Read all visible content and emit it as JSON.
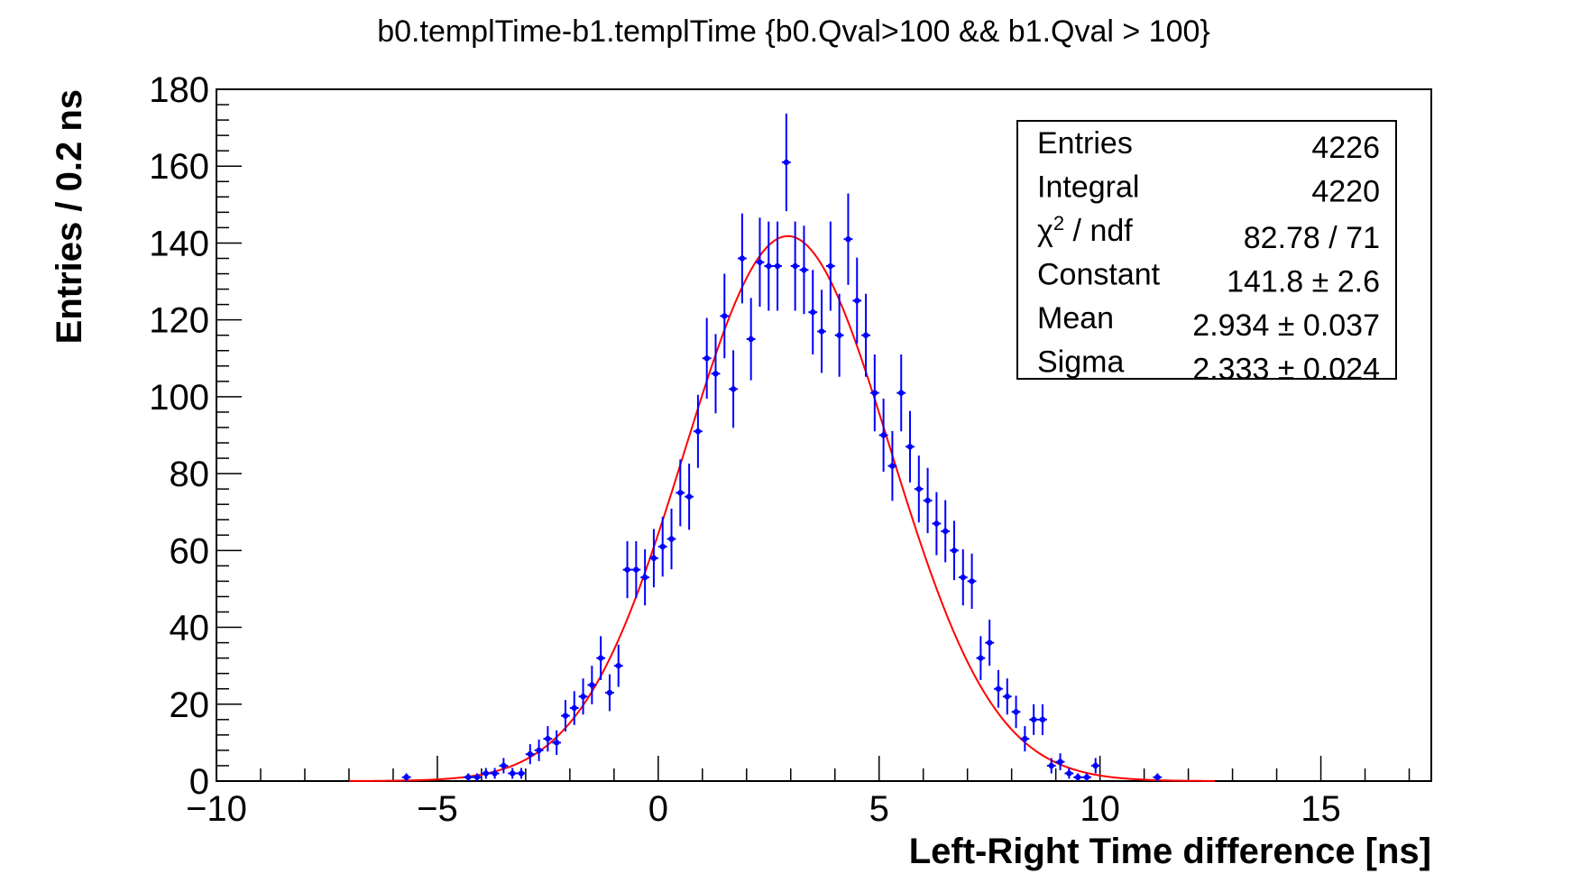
{
  "chart_data": {
    "type": "scatter",
    "title": "b0.templTime-b1.templTime {b0.Qval>100 && b1.Qval > 100}",
    "xlabel": "Left-Right Time difference [ns]",
    "ylabel": "Entries / 0.2 ns",
    "xlim": [
      -10,
      17.5
    ],
    "ylim": [
      0,
      180
    ],
    "x_ticks": [
      -10,
      -5,
      0,
      5,
      10,
      15
    ],
    "x_tick_labels": [
      "−10",
      "−5",
      "0",
      "5",
      "10",
      "15"
    ],
    "y_ticks": [
      0,
      20,
      40,
      60,
      80,
      100,
      120,
      140,
      160,
      180
    ],
    "y_tick_labels": [
      "0",
      "20",
      "40",
      "60",
      "80",
      "100",
      "120",
      "140",
      "160",
      "180"
    ],
    "grid": false,
    "legend_position": "top-right",
    "series": [
      {
        "color": "#0000ff",
        "style": "points-with-error-bars",
        "x": [
          -5.7,
          -4.3,
          -4.1,
          -3.9,
          -3.7,
          -3.5,
          -3.3,
          -3.1,
          -2.9,
          -2.7,
          -2.5,
          -2.3,
          -2.1,
          -1.9,
          -1.7,
          -1.5,
          -1.3,
          -1.1,
          -0.9,
          -0.7,
          -0.5,
          -0.3,
          -0.1,
          0.1,
          0.3,
          0.5,
          0.7,
          0.9,
          1.1,
          1.3,
          1.5,
          1.7,
          1.9,
          2.1,
          2.3,
          2.5,
          2.7,
          2.9,
          3.1,
          3.3,
          3.5,
          3.7,
          3.9,
          4.1,
          4.3,
          4.5,
          4.7,
          4.9,
          5.1,
          5.3,
          5.5,
          5.7,
          5.9,
          6.1,
          6.3,
          6.5,
          6.7,
          6.9,
          7.1,
          7.3,
          7.5,
          7.7,
          7.9,
          8.1,
          8.3,
          8.5,
          8.7,
          8.9,
          9.1,
          9.3,
          9.5,
          9.7,
          9.9,
          11.3
        ],
        "y": [
          1,
          1,
          1,
          2,
          2,
          4,
          2,
          2,
          7,
          8,
          11,
          10,
          17,
          19,
          22,
          25,
          32,
          23,
          30,
          55,
          55,
          53,
          58,
          61,
          63,
          75,
          74,
          91,
          110,
          106,
          121,
          102,
          136,
          115,
          135,
          134,
          134,
          161,
          134,
          133,
          122,
          117,
          134,
          116,
          141,
          125,
          116,
          101,
          90,
          82,
          101,
          87,
          76,
          73,
          67,
          65,
          60,
          53,
          52,
          32,
          36,
          24,
          22,
          18,
          11,
          16,
          16,
          4,
          5,
          2,
          1,
          1,
          4,
          1
        ],
        "err": [
          1,
          1,
          1,
          1.4,
          1.4,
          2,
          1.4,
          1.4,
          2.6,
          2.8,
          3.3,
          3.2,
          4.1,
          4.4,
          4.7,
          5,
          5.7,
          4.8,
          5.5,
          7.4,
          7.4,
          7.3,
          7.6,
          7.8,
          7.9,
          8.7,
          8.6,
          9.5,
          10.5,
          10.3,
          11,
          10.1,
          11.7,
          10.7,
          11.6,
          11.6,
          11.6,
          12.7,
          11.6,
          11.5,
          11,
          10.8,
          11.6,
          10.8,
          11.9,
          11.2,
          10.8,
          10,
          9.5,
          9.1,
          10,
          9.3,
          8.7,
          8.5,
          8.2,
          8.1,
          7.7,
          7.3,
          7.2,
          5.7,
          6,
          4.9,
          4.7,
          4.2,
          3.3,
          4,
          4,
          2,
          2.2,
          1.4,
          1,
          1,
          2,
          1
        ]
      },
      {
        "color": "#ff0000",
        "style": "line",
        "model": "gaussian-fit",
        "constant": 141.8,
        "mean": 2.934,
        "sigma": 2.333,
        "xrange": [
          -7,
          12.6
        ]
      }
    ]
  },
  "stats_box": {
    "rows": [
      {
        "label": "Entries",
        "value": "4226"
      },
      {
        "label": "Integral",
        "value": "4220"
      },
      {
        "label": "χ",
        "sup": "2",
        "label_rest": " / ndf",
        "value": "82.78 / 71"
      },
      {
        "label": "Constant",
        "value": "141.8 ± 2.6"
      },
      {
        "label": "Mean",
        "value": "2.934 ± 0.037"
      },
      {
        "label": "Sigma",
        "value": "2.333 ± 0.024"
      }
    ]
  }
}
